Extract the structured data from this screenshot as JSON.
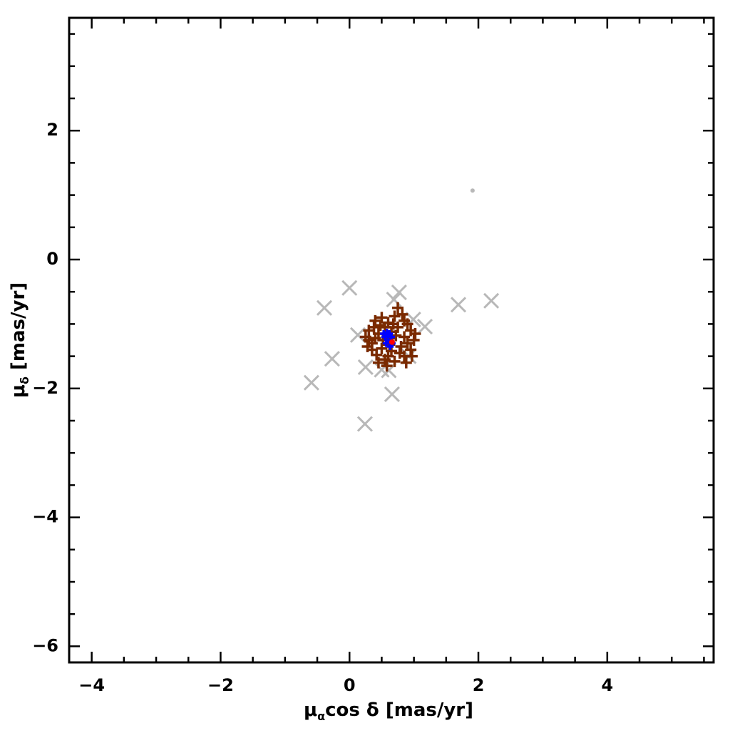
{
  "chart_data": {
    "type": "scatter",
    "x_label": {
      "symbol": "μ",
      "sub": "α",
      "rest": "cos δ [mas/yr]"
    },
    "y_label": {
      "symbol": "μ",
      "sub": "δ",
      "rest": " [mas/yr]"
    },
    "xlim": [
      -4.35,
      5.65
    ],
    "ylim": [
      -6.25,
      3.75
    ],
    "xticks": [
      {
        "value": -4,
        "label": "−4"
      },
      {
        "value": -2,
        "label": "−2"
      },
      0,
      2,
      4
    ],
    "yticks": [
      {
        "value": -6,
        "label": "−6"
      },
      {
        "value": -4,
        "label": "−4"
      },
      {
        "value": -2,
        "label": "−2"
      },
      0,
      2
    ],
    "xminorticks": [
      -3.5,
      -3,
      -2.5,
      -1.5,
      -1,
      -0.5,
      0.5,
      1,
      1.5,
      2.5,
      3,
      3.5,
      4.5,
      5,
      5.5
    ],
    "yminorticks": [
      -5.5,
      -5,
      -4.5,
      -3.5,
      -3,
      -2.5,
      -1.5,
      -1,
      -0.5,
      0.5,
      1,
      1.5,
      2.5,
      3,
      3.5
    ],
    "series": [
      {
        "color": "#b8b8b8",
        "marker": "x",
        "size": 20,
        "x": [
          0.0,
          -0.39,
          -0.59,
          -0.27,
          0.24,
          0.66,
          0.25,
          0.5,
          0.77,
          0.69,
          1.69,
          2.2,
          1.17,
          0.99,
          0.13,
          0.61,
          0.92
        ],
        "y": [
          -0.44,
          -0.75,
          -1.91,
          -1.54,
          -2.55,
          -2.09,
          -1.67,
          -1.71,
          -0.51,
          -0.62,
          -0.7,
          -0.64,
          -1.04,
          -0.93,
          -1.17,
          -1.72,
          -1.5
        ]
      },
      {
        "color": "#b8b8b8",
        "marker": "dot",
        "size": 3,
        "x": [
          1.91
        ],
        "y": [
          1.07
        ]
      },
      {
        "color": "#7a2a00",
        "marker": "plus",
        "size": 16,
        "x": [
          0.62,
          0.3,
          0.35,
          0.4,
          0.5,
          0.7,
          0.85,
          0.95,
          1.0,
          0.95,
          0.85,
          0.7,
          0.55,
          0.42,
          0.3,
          0.45,
          0.55,
          0.75,
          0.85,
          0.8,
          0.65,
          0.5,
          0.4,
          0.6,
          0.9,
          0.52,
          0.72,
          0.62,
          0.48,
          0.78,
          0.35,
          0.9,
          0.58,
          0.68,
          1.02,
          0.25,
          0.38,
          0.82,
          0.6,
          0.88,
          0.75,
          0.45,
          0.28,
          0.97,
          0.65
        ],
        "y": [
          -1.22,
          -1.1,
          -1.3,
          -0.95,
          -0.9,
          -0.88,
          -0.95,
          -1.1,
          -1.25,
          -1.4,
          -1.5,
          -1.58,
          -1.55,
          -1.48,
          -1.25,
          -1.15,
          -1.05,
          -1.05,
          -1.2,
          -1.35,
          -1.42,
          -1.38,
          -1.22,
          -0.98,
          -1.3,
          -1.25,
          -1.18,
          -1.32,
          -1.02,
          -1.45,
          -1.4,
          -1.0,
          -1.65,
          -1.0,
          -1.15,
          -1.2,
          -1.05,
          -0.85,
          -1.5,
          -1.6,
          -0.75,
          -1.6,
          -1.35,
          -1.5,
          -1.12
        ]
      },
      {
        "color": "#0000ff",
        "marker": "plus",
        "size": 10,
        "x": [
          0.58,
          0.62,
          0.55,
          0.6,
          0.65,
          0.57,
          0.63,
          0.6,
          0.53,
          0.66
        ],
        "y": [
          -1.13,
          -1.15,
          -1.2,
          -1.25,
          -1.2,
          -1.3,
          -1.35,
          -1.18,
          -1.15,
          -1.3
        ]
      },
      {
        "color": "#ff0000",
        "marker": "dot",
        "size": 4,
        "x": [
          0.66
        ],
        "y": [
          -1.28
        ]
      }
    ]
  }
}
